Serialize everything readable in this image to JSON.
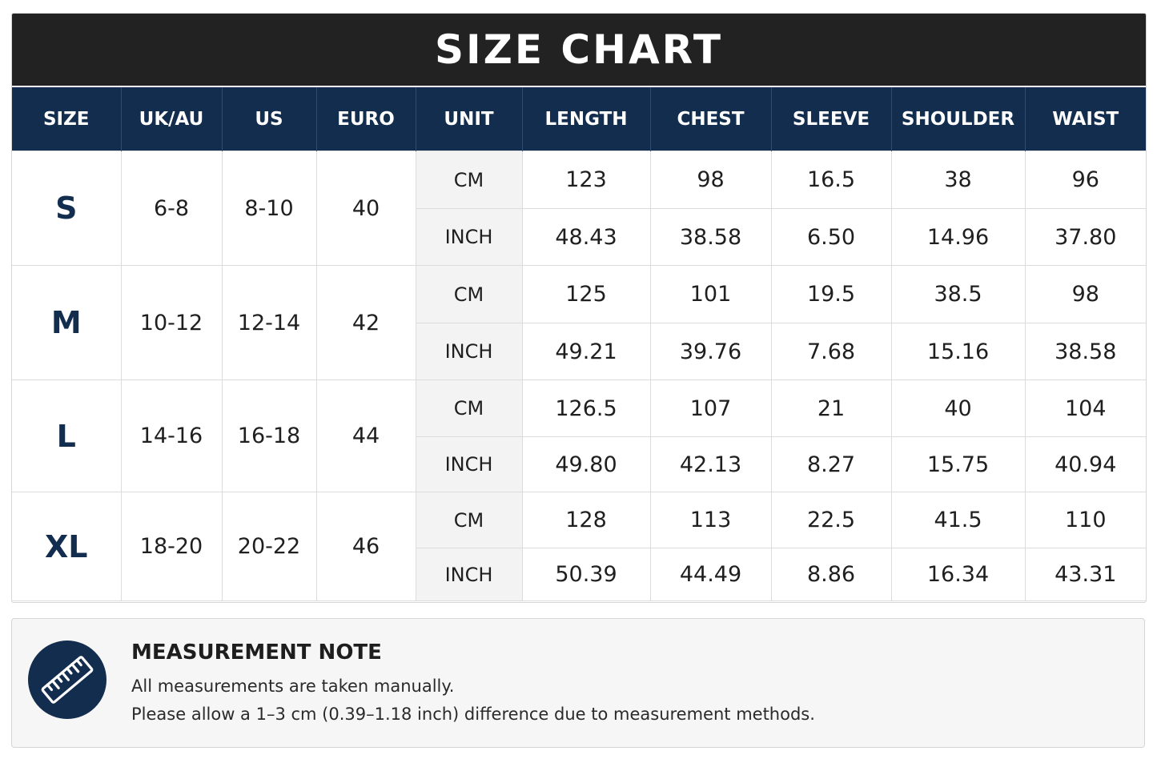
{
  "title": "SIZE CHART",
  "headers": [
    "SIZE",
    "UK/AU",
    "US",
    "EURO",
    "UNIT",
    "LENGTH",
    "CHEST",
    "SLEEVE",
    "SHOULDER",
    "WAIST"
  ],
  "sizes": [
    {
      "size": "S",
      "uk_au": "6-8",
      "us": "8-10",
      "euro": "40",
      "cm": {
        "unit": "CM",
        "length": "123",
        "chest": "98",
        "sleeve": "16.5",
        "shoulder": "38",
        "waist": "96"
      },
      "inch": {
        "unit": "INCH",
        "length": "48.43",
        "chest": "38.58",
        "sleeve": "6.50",
        "shoulder": "14.96",
        "waist": "37.80"
      }
    },
    {
      "size": "M",
      "uk_au": "10-12",
      "us": "12-14",
      "euro": "42",
      "cm": {
        "unit": "CM",
        "length": "125",
        "chest": "101",
        "sleeve": "19.5",
        "shoulder": "38.5",
        "waist": "98"
      },
      "inch": {
        "unit": "INCH",
        "length": "49.21",
        "chest": "39.76",
        "sleeve": "7.68",
        "shoulder": "15.16",
        "waist": "38.58"
      }
    },
    {
      "size": "L",
      "uk_au": "14-16",
      "us": "16-18",
      "euro": "44",
      "cm": {
        "unit": "CM",
        "length": "126.5",
        "chest": "107",
        "sleeve": "21",
        "shoulder": "40",
        "waist": "104"
      },
      "inch": {
        "unit": "INCH",
        "length": "49.80",
        "chest": "42.13",
        "sleeve": "8.27",
        "shoulder": "15.75",
        "waist": "40.94"
      }
    },
    {
      "size": "XL",
      "uk_au": "18-20",
      "us": "20-22",
      "euro": "46",
      "cm": {
        "unit": "CM",
        "length": "128",
        "chest": "113",
        "sleeve": "22.5",
        "shoulder": "41.5",
        "waist": "110"
      },
      "inch": {
        "unit": "INCH",
        "length": "50.39",
        "chest": "44.49",
        "sleeve": "8.86",
        "shoulder": "16.34",
        "waist": "43.31"
      }
    }
  ],
  "note": {
    "icon": "ruler-icon",
    "title": "MEASUREMENT NOTE",
    "line1": "All measurements are taken manually.",
    "line2": "Please allow a 1–3 cm (0.39–1.18 inch) difference due to measurement methods."
  },
  "colors": {
    "title_bar": "#222222",
    "header_bg": "#132d4f",
    "size_label": "#132d4f",
    "unit_bg": "#f3f3f3",
    "note_bg": "#f6f6f6"
  }
}
